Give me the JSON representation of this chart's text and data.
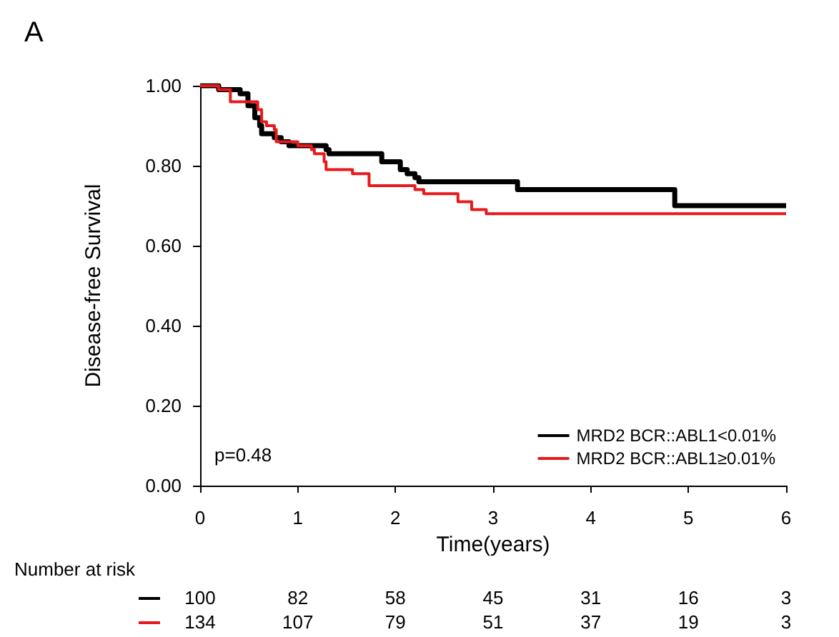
{
  "chart_data": {
    "type": "step",
    "title": "A",
    "xlabel": "Time(years)",
    "ylabel": "Disease-free Survival",
    "xlim": [
      0,
      6
    ],
    "xticks": [
      0,
      1,
      2,
      3,
      4,
      5,
      6
    ],
    "ylim": [
      0,
      1
    ],
    "yticks": [
      {
        "value": 0,
        "label": "0.00"
      },
      {
        "value": 0.2,
        "label": "0.20"
      },
      {
        "value": 0.4,
        "label": "0.40"
      },
      {
        "value": 0.6,
        "label": "0.60"
      },
      {
        "value": 0.8,
        "label": "0.80"
      },
      {
        "value": 1,
        "label": "1.00"
      }
    ],
    "grid": false,
    "legend": "bottom right",
    "marker": "none",
    "line_style": "solid",
    "series": [
      {
        "name": "MRD2 BCR::ABL1<0.01%",
        "color": "#000000",
        "x": [
          0,
          0.19,
          0.41,
          0.49,
          0.56,
          0.61,
          0.63,
          0.76,
          0.83,
          0.91,
          1.0,
          1.29,
          1.32,
          1.86,
          2.05,
          2.12,
          2.2,
          2.24,
          3.25,
          4.86,
          6
        ],
        "values": [
          1,
          0.99,
          0.98,
          0.95,
          0.92,
          0.9,
          0.88,
          0.87,
          0.86,
          0.85,
          0.85,
          0.84,
          0.83,
          0.81,
          0.79,
          0.78,
          0.77,
          0.76,
          0.74,
          0.7,
          0.7
        ]
      },
      {
        "name": "MRD2 BCR::ABL1≥0.01%",
        "color": "#e8191c",
        "x": [
          0,
          0.19,
          0.31,
          0.59,
          0.63,
          0.68,
          0.76,
          0.78,
          1.0,
          1.14,
          1.17,
          1.27,
          1.29,
          1.56,
          1.73,
          2.2,
          2.29,
          2.64,
          2.78,
          2.93,
          6
        ],
        "values": [
          1,
          0.99,
          0.96,
          0.94,
          0.91,
          0.9,
          0.89,
          0.86,
          0.85,
          0.84,
          0.83,
          0.81,
          0.79,
          0.78,
          0.75,
          0.74,
          0.73,
          0.71,
          0.69,
          0.68,
          0.68
        ]
      }
    ],
    "annotations": [
      "p=0.48",
      "Number at risk",
      "100",
      "82",
      "58",
      "45",
      "31",
      "16",
      "3",
      "134",
      "107",
      "79",
      "51",
      "37",
      "19",
      "3"
    ]
  }
}
